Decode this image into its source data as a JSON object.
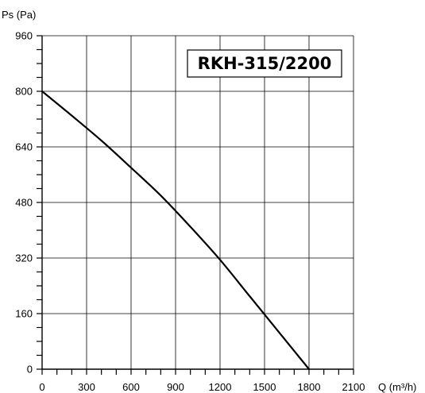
{
  "chart_data": {
    "type": "line",
    "title": "RKH-315/2200",
    "xlabel": "Q (m³/h)",
    "ylabel": "Ps (Pa)",
    "xlim": [
      0,
      2100
    ],
    "ylim": [
      0,
      960
    ],
    "x_ticks": [
      0,
      300,
      600,
      900,
      1200,
      1500,
      1800,
      2100
    ],
    "y_ticks": [
      0,
      160,
      320,
      480,
      640,
      800,
      960
    ],
    "grid": true,
    "series": [
      {
        "x": [
          0,
          200,
          400,
          600,
          800,
          1000,
          1200,
          1400,
          1600,
          1800
        ],
        "y": [
          800,
          730,
          658,
          580,
          500,
          410,
          315,
          210,
          105,
          0
        ]
      }
    ],
    "colors": {
      "line": "#000000",
      "grid": "#000000",
      "background": "#ffffff"
    }
  }
}
